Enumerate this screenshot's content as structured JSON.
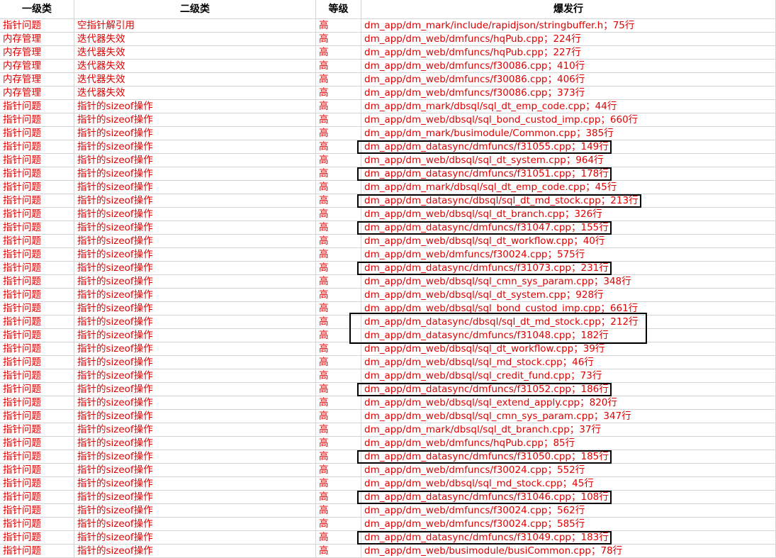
{
  "headers": [
    "一级类",
    "二级类",
    "等级",
    "爆发行"
  ],
  "rows": [
    [
      "指针问题",
      "空指针解引用",
      "高",
      "dm_app/dm_mark/include/rapidjson/stringbuffer.h；75行"
    ],
    [
      "内存管理",
      "迭代器失效",
      "高",
      "dm_app/dm_web/dmfuncs/hqPub.cpp；224行"
    ],
    [
      "内存管理",
      "迭代器失效",
      "高",
      "dm_app/dm_web/dmfuncs/hqPub.cpp；227行"
    ],
    [
      "内存管理",
      "迭代器失效",
      "高",
      "dm_app/dm_web/dmfuncs/f30086.cpp；410行"
    ],
    [
      "内存管理",
      "迭代器失效",
      "高",
      "dm_app/dm_web/dmfuncs/f30086.cpp；406行"
    ],
    [
      "内存管理",
      "迭代器失效",
      "高",
      "dm_app/dm_web/dmfuncs/f30086.cpp；373行"
    ],
    [
      "指针问题",
      "指针的sizeof操作",
      "高",
      "dm_app/dm_mark/dbsql/sql_dt_emp_code.cpp；44行"
    ],
    [
      "指针问题",
      "指针的sizeof操作",
      "高",
      "dm_app/dm_web/dbsql/sql_bond_custod_imp.cpp；660行"
    ],
    [
      "指针问题",
      "指针的sizeof操作",
      "高",
      "dm_app/dm_mark/busimodule/Common.cpp；385行"
    ],
    [
      "指针问题",
      "指针的sizeof操作",
      "高",
      "dm_app/dm_datasync/dmfuncs/f31055.cpp；149行"
    ],
    [
      "指针问题",
      "指针的sizeof操作",
      "高",
      "dm_app/dm_web/dbsql/sql_dt_system.cpp；964行"
    ],
    [
      "指针问题",
      "指针的sizeof操作",
      "高",
      "dm_app/dm_datasync/dmfuncs/f31051.cpp；178行"
    ],
    [
      "指针问题",
      "指针的sizeof操作",
      "高",
      "dm_app/dm_mark/dbsql/sql_dt_emp_code.cpp；45行"
    ],
    [
      "指针问题",
      "指针的sizeof操作",
      "高",
      "dm_app/dm_datasync/dbsql/sql_dt_md_stock.cpp；213行"
    ],
    [
      "指针问题",
      "指针的sizeof操作",
      "高",
      "dm_app/dm_web/dbsql/sql_dt_branch.cpp；326行"
    ],
    [
      "指针问题",
      "指针的sizeof操作",
      "高",
      "dm_app/dm_datasync/dmfuncs/f31047.cpp；155行"
    ],
    [
      "指针问题",
      "指针的sizeof操作",
      "高",
      "dm_app/dm_web/dbsql/sql_dt_workflow.cpp；40行"
    ],
    [
      "指针问题",
      "指针的sizeof操作",
      "高",
      "dm_app/dm_web/dmfuncs/f30024.cpp；575行"
    ],
    [
      "指针问题",
      "指针的sizeof操作",
      "高",
      "dm_app/dm_datasync/dmfuncs/f31073.cpp；231行"
    ],
    [
      "指针问题",
      "指针的sizeof操作",
      "高",
      "dm_app/dm_web/dbsql/sql_cmn_sys_param.cpp；348行"
    ],
    [
      "指针问题",
      "指针的sizeof操作",
      "高",
      "dm_app/dm_web/dbsql/sql_dt_system.cpp；928行"
    ],
    [
      "指针问题",
      "指针的sizeof操作",
      "高",
      "dm_app/dm_web/dbsql/sql_bond_custod_imp.cpp；661行"
    ],
    [
      "指针问题",
      "指针的sizeof操作",
      "高",
      "dm_app/dm_datasync/dbsql/sql_dt_md_stock.cpp；212行"
    ],
    [
      "指针问题",
      "指针的sizeof操作",
      "高",
      "dm_app/dm_datasync/dmfuncs/f31048.cpp；182行"
    ],
    [
      "指针问题",
      "指针的sizeof操作",
      "高",
      "dm_app/dm_web/dbsql/sql_dt_workflow.cpp；39行"
    ],
    [
      "指针问题",
      "指针的sizeof操作",
      "高",
      "dm_app/dm_web/dbsql/sql_md_stock.cpp；46行"
    ],
    [
      "指针问题",
      "指针的sizeof操作",
      "高",
      "dm_app/dm_web/dbsql/sql_credit_fund.cpp；73行"
    ],
    [
      "指针问题",
      "指针的sizeof操作",
      "高",
      "dm_app/dm_datasync/dmfuncs/f31052.cpp；186行"
    ],
    [
      "指针问题",
      "指针的sizeof操作",
      "高",
      "dm_app/dm_web/dbsql/sql_extend_apply.cpp；820行"
    ],
    [
      "指针问题",
      "指针的sizeof操作",
      "高",
      "dm_app/dm_web/dbsql/sql_cmn_sys_param.cpp；347行"
    ],
    [
      "指针问题",
      "指针的sizeof操作",
      "高",
      "dm_app/dm_mark/dbsql/sql_dt_branch.cpp；37行"
    ],
    [
      "指针问题",
      "指针的sizeof操作",
      "高",
      "dm_app/dm_web/dmfuncs/hqPub.cpp；85行"
    ],
    [
      "指针问题",
      "指针的sizeof操作",
      "高",
      "dm_app/dm_datasync/dmfuncs/f31050.cpp；185行"
    ],
    [
      "指针问题",
      "指针的sizeof操作",
      "高",
      "dm_app/dm_web/dmfuncs/f30024.cpp；552行"
    ],
    [
      "指针问题",
      "指针的sizeof操作",
      "高",
      "dm_app/dm_web/dbsql/sql_md_stock.cpp；45行"
    ],
    [
      "指针问题",
      "指针的sizeof操作",
      "高",
      "dm_app/dm_datasync/dmfuncs/f31046.cpp；108行"
    ],
    [
      "指针问题",
      "指针的sizeof操作",
      "高",
      "dm_app/dm_web/dmfuncs/f30024.cpp；562行"
    ],
    [
      "指针问题",
      "指针的sizeof操作",
      "高",
      "dm_app/dm_web/dmfuncs/f30024.cpp；585行"
    ],
    [
      "指针问题",
      "指针的sizeof操作",
      "高",
      "dm_app/dm_datasync/dmfuncs/f31049.cpp；183行"
    ],
    [
      "指针问题",
      "指针的sizeof操作",
      "高",
      "dm_app/dm_web/busimodule/busiCommon.cpp；78行"
    ]
  ],
  "highlighted_rows": [
    9,
    11,
    13,
    15,
    18,
    22,
    23,
    27,
    32,
    35,
    38
  ]
}
